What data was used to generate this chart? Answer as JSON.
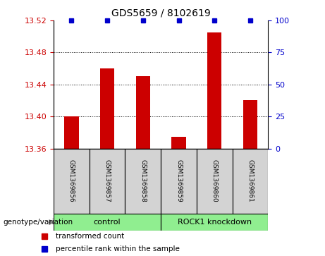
{
  "title": "GDS5659 / 8102619",
  "samples": [
    "GSM1369856",
    "GSM1369857",
    "GSM1369858",
    "GSM1369859",
    "GSM1369860",
    "GSM1369861"
  ],
  "red_values": [
    13.4,
    13.46,
    13.45,
    13.375,
    13.505,
    13.42
  ],
  "blue_values": [
    100,
    100,
    100,
    100,
    100,
    100
  ],
  "ylim_left": [
    13.36,
    13.52
  ],
  "ylim_right": [
    0,
    100
  ],
  "yticks_left": [
    13.36,
    13.4,
    13.44,
    13.48,
    13.52
  ],
  "yticks_right": [
    0,
    25,
    50,
    75,
    100
  ],
  "bar_color": "#cc0000",
  "blue_color": "#0000cc",
  "title_color": "#000000",
  "left_tick_color": "#cc0000",
  "right_tick_color": "#0000cc",
  "sample_box_color": "#d3d3d3",
  "group_box_color": "#90ee90",
  "genotype_label": "genotype/variation",
  "group_labels": [
    "control",
    "ROCK1 knockdown"
  ],
  "group_ranges": [
    [
      0,
      3
    ],
    [
      3,
      6
    ]
  ],
  "legend_entries": [
    {
      "color": "#cc0000",
      "label": "transformed count"
    },
    {
      "color": "#0000cc",
      "label": "percentile rank within the sample"
    }
  ]
}
